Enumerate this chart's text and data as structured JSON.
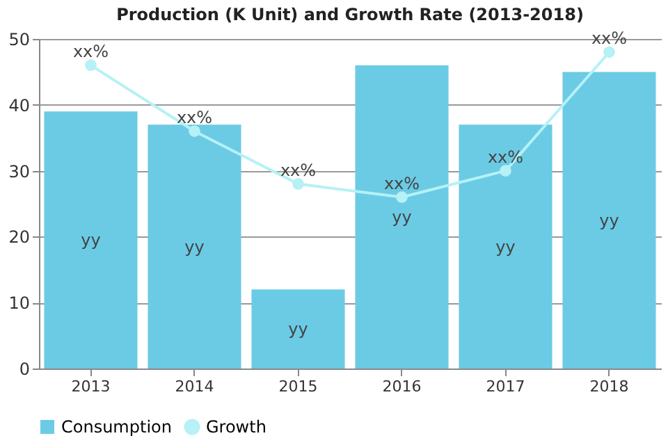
{
  "chart_data": {
    "type": "bar",
    "title": "Production (K Unit) and Growth Rate (2013-2018)",
    "categories": [
      "2013",
      "2014",
      "2015",
      "2016",
      "2017",
      "2018"
    ],
    "series": [
      {
        "name": "Consumption",
        "color": "#6bcbe5",
        "values": [
          39,
          37,
          12,
          46,
          37,
          45
        ],
        "value_labels": [
          "yy",
          "yy",
          "yy",
          "yy",
          "yy",
          "yy"
        ]
      },
      {
        "name": "Growth",
        "type": "line",
        "color": "#b5f1f5",
        "values": [
          46,
          36,
          28,
          26,
          30,
          48
        ],
        "value_labels": [
          "xx%",
          "xx%",
          "xx%",
          "xx%",
          "xx%",
          "xx%"
        ]
      }
    ],
    "ylim": [
      0,
      50
    ],
    "yticks": [
      0,
      10,
      20,
      30,
      40,
      50
    ],
    "grid": "y",
    "legend": "bottom",
    "marker": "circle"
  }
}
